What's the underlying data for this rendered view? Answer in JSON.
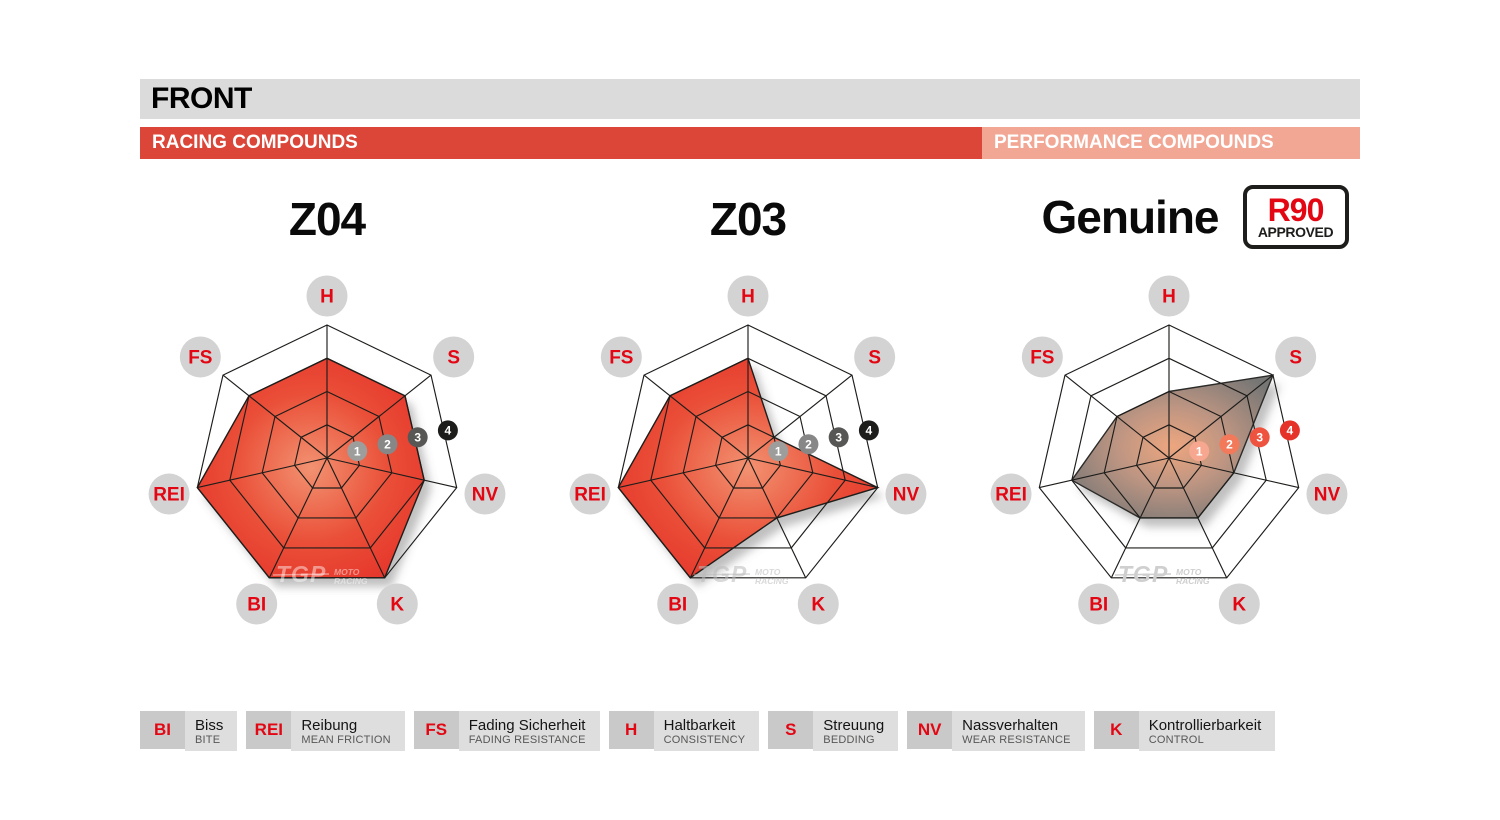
{
  "header": {
    "title": "FRONT",
    "racing_label": "RACING COMPOUNDS",
    "performance_label": "PERFORMANCE COMPOUNDS",
    "colors": {
      "front_bar": "#dbdbdb",
      "racing_bar": "#dc4639",
      "performance_bar": "#f2a795"
    }
  },
  "badge": {
    "top": "R90",
    "bottom": "APPROVED",
    "top_color": "#e30613"
  },
  "watermark": {
    "brand": "TGP",
    "sub1": "MOTO",
    "sub2": "RACING"
  },
  "axis_style": {
    "label_color": "#e30613",
    "label_circle_color": "#d3d3d3",
    "grid_color": "#1d1d1b"
  },
  "chart_data": [
    {
      "type": "radar",
      "title": "Z04",
      "compound_group": "RACING COMPOUNDS",
      "axes": [
        "H",
        "S",
        "NV",
        "K",
        "BI",
        "REI",
        "FS"
      ],
      "values": {
        "H": 3,
        "S": 3,
        "NV": 3,
        "K": 4,
        "BI": 4,
        "REI": 4,
        "FS": 3
      },
      "rings": 4,
      "ylim": [
        0,
        4
      ],
      "scale_labels": [
        "1",
        "2",
        "3",
        "4"
      ],
      "scale_circle_colors": [
        "#9d9d9c",
        "#878787",
        "#575756",
        "#1d1d1b"
      ],
      "fill_gradient": {
        "stops": [
          [
            "0%",
            "#f29271"
          ],
          [
            "55%",
            "#ea4f38"
          ],
          [
            "100%",
            "#e5332a"
          ]
        ]
      },
      "stroke": "#1d1d1b",
      "watermark_color": "rgba(255,255,255,0.45)"
    },
    {
      "type": "radar",
      "title": "Z03",
      "compound_group": "RACING COMPOUNDS",
      "axes": [
        "H",
        "S",
        "NV",
        "K",
        "BI",
        "REI",
        "FS"
      ],
      "values": {
        "H": 3,
        "S": 1,
        "NV": 4,
        "K": 2,
        "BI": 4,
        "REI": 4,
        "FS": 3
      },
      "rings": 4,
      "ylim": [
        0,
        4
      ],
      "scale_labels": [
        "1",
        "2",
        "3",
        "4"
      ],
      "scale_circle_colors": [
        "#9d9d9c",
        "#878787",
        "#575756",
        "#1d1d1b"
      ],
      "fill_gradient": {
        "stops": [
          [
            "0%",
            "#f29271"
          ],
          [
            "55%",
            "#ea4f38"
          ],
          [
            "100%",
            "#e5332a"
          ]
        ]
      },
      "stroke": "#1d1d1b",
      "watermark_color": "rgba(185,185,185,0.55)"
    },
    {
      "type": "radar",
      "title": "Genuine",
      "compound_group": "PERFORMANCE COMPOUNDS",
      "axes": [
        "H",
        "S",
        "NV",
        "K",
        "BI",
        "REI",
        "FS"
      ],
      "values": {
        "H": 2,
        "S": 4,
        "NV": 2,
        "K": 2,
        "BI": 2,
        "REI": 3,
        "FS": 2
      },
      "rings": 4,
      "ylim": [
        0,
        4
      ],
      "scale_labels": [
        "1",
        "2",
        "3",
        "4"
      ],
      "scale_circle_colors": [
        "#f7a78f",
        "#f3795b",
        "#ee5340",
        "#e6332a"
      ],
      "fill_gradient": {
        "stops": [
          [
            "0%",
            "#eda67f"
          ],
          [
            "45%",
            "#bd9582"
          ],
          [
            "100%",
            "#767675"
          ]
        ]
      },
      "stroke": "#2b2b2a",
      "watermark_color": "#cfcfcf"
    }
  ],
  "legend": {
    "items": [
      {
        "abbr": "BI",
        "de": "Biss",
        "en": "BITE"
      },
      {
        "abbr": "REI",
        "de": "Reibung",
        "en": "MEAN FRICTION"
      },
      {
        "abbr": "FS",
        "de": "Fading Sicherheit",
        "en": "FADING RESISTANCE"
      },
      {
        "abbr": "H",
        "de": "Haltbarkeit",
        "en": "CONSISTENCY"
      },
      {
        "abbr": "S",
        "de": "Streuung",
        "en": "BEDDING"
      },
      {
        "abbr": "NV",
        "de": "Nassverhalten",
        "en": "WEAR RESISTANCE"
      },
      {
        "abbr": "K",
        "de": "Kontrollierbarkeit",
        "en": "CONTROL"
      }
    ]
  }
}
